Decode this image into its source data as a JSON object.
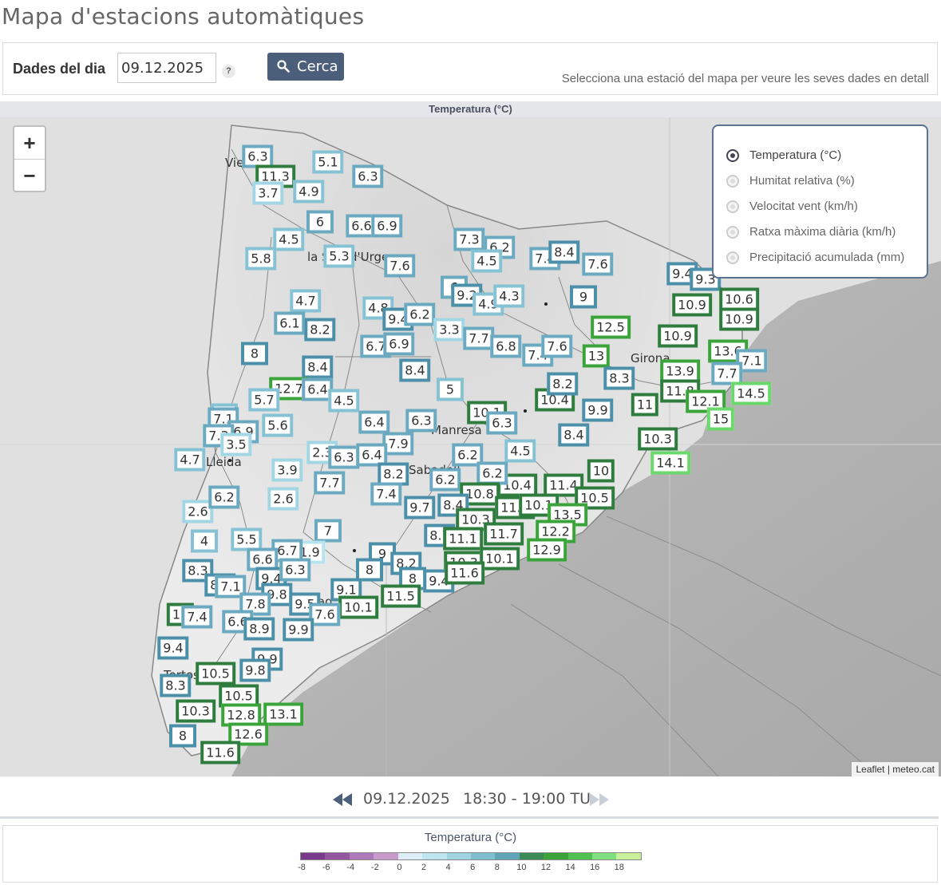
{
  "page": {
    "title": "Mapa d'estacions automàtiques",
    "date_label": "Dades del dia",
    "date_value": "09.12.2025",
    "help_label": "?",
    "search_label": "Cerca",
    "hint": "Selecciona una estació del mapa per veure les seves dades en detall"
  },
  "map": {
    "header": "Temperatura (°C)",
    "zoom_in": "+",
    "zoom_out": "−",
    "attribution": "Leaflet | meteo.cat",
    "variables": [
      {
        "label": "Temperatura (°C)",
        "selected": true
      },
      {
        "label": "Humitat relativa (%)",
        "selected": false
      },
      {
        "label": "Velocitat vent (km/h)",
        "selected": false
      },
      {
        "label": "Ratxa màxima diària (km/h)",
        "selected": false
      },
      {
        "label": "Precipitació acumulada (mm)",
        "selected": false
      }
    ],
    "place_labels": [
      "Vie",
      "la S",
      "d'Urge",
      "Girona",
      "Manresa",
      "Lleida",
      "Sabadell",
      "Tarrag",
      "Tortos"
    ],
    "stations": [
      "6.3",
      "11.3",
      "3.7",
      "4.9",
      "5.1",
      "6.3",
      "6",
      "6.6",
      "6.9",
      "4.5",
      "5.8",
      "5.3",
      "7.6",
      "7.3",
      "6.2",
      "4.5",
      "7.4",
      "8.4",
      "7.6",
      "6",
      "9.2",
      "4.9",
      "4.3",
      "9.4",
      "9.3",
      "10.6",
      "10.9",
      "10.9",
      "9",
      "12.5",
      "4.7",
      "6.1",
      "8.2",
      "4.8",
      "9.4",
      "6.2",
      "3.3",
      "7.7",
      "6.8",
      "10.9",
      "8",
      "6.7",
      "6.9",
      "8.4",
      "7.4",
      "7.6",
      "13",
      "13.6",
      "7.1",
      "8.4",
      "12.7",
      "13.9",
      "7.7",
      "8.3",
      "6.4",
      "4.5",
      "5",
      "10.4",
      "8.2",
      "11",
      "11.8",
      "12.1",
      "14.5",
      "5.7",
      "10.1",
      "6.3",
      "9.9",
      "15",
      "5.6",
      "5",
      "7.1",
      "6.9",
      "6.4",
      "6.3",
      "7.9",
      "8.4",
      "7.3",
      "3.5",
      "2.3",
      "6.3",
      "6.4",
      "6.2",
      "4.5",
      "10.3",
      "4.7",
      "14.1",
      "3.9",
      "7.7",
      "8.2",
      "6.2",
      "10.4",
      "11.4",
      "6.2",
      "10",
      "2.6",
      "7.4",
      "10.8",
      "10.5",
      "2.6",
      "9.7",
      "8.4",
      "11.2",
      "10.1",
      "13.5",
      "4",
      "6.2",
      "7",
      "10.3",
      "5.5",
      "8.7",
      "11.1",
      "11.7",
      "12.2",
      "1.9",
      "6.7",
      "9",
      "8.2",
      "10.3",
      "12.9",
      "10.1",
      "8.3",
      "6.6",
      "9.4",
      "6.3",
      "8",
      "8",
      "9.4",
      "11.6",
      "8.4",
      "7.1",
      "9.8",
      "9.5",
      "9.1",
      "10.1",
      "11.5",
      "7.8",
      "11",
      "7.4",
      "6.6",
      "8.9",
      "7.6",
      "9.9",
      "9.4",
      "9.9",
      "10.5",
      "9.8",
      "8.3",
      "10.5",
      "10.3",
      "12.8",
      "13.1",
      "8",
      "12.6",
      "11.6"
    ]
  },
  "navigation": {
    "date": "09.12.2025",
    "time_range": "18:30 - 19:00 TU"
  },
  "scale": {
    "title": "Temperatura (°C)",
    "ticks": [
      "-8",
      "-6",
      "-4",
      "-2",
      "0",
      "2",
      "4",
      "6",
      "8",
      "10",
      "12",
      "14",
      "16",
      "18"
    ],
    "colors": [
      "#7a3a8c",
      "#94579f",
      "#ad79b8",
      "#c99bcc",
      "#ddeef6",
      "#bfe6ef",
      "#9fd4e0",
      "#7fbfcf",
      "#5fa5b8",
      "#3b8a57",
      "#3aa33a",
      "#4fc24f",
      "#7fe07f",
      "#c8f09a"
    ]
  }
}
